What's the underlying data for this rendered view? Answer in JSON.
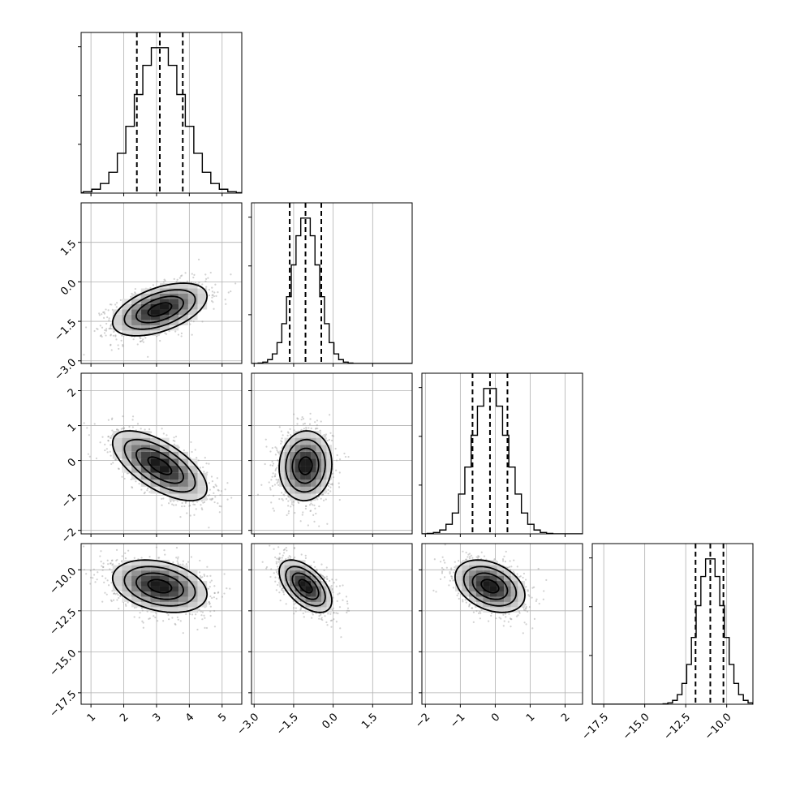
{
  "chart_data": {
    "type": "corner",
    "n_params": 4,
    "grid": true,
    "params": [
      {
        "range": [
          0.7,
          5.6
        ],
        "ticks": [
          1,
          2,
          3,
          4,
          5
        ],
        "tick_labels": [
          "1",
          "2",
          "3",
          "4",
          "5"
        ],
        "center": 3.1,
        "sigma": 0.72,
        "quantiles": [
          2.4,
          3.1,
          3.8
        ]
      },
      {
        "range": [
          -3.1,
          3.0
        ],
        "ticks": [
          -3.0,
          -1.5,
          0.0,
          1.5
        ],
        "tick_labels": [
          "−3.0",
          "−1.5",
          "0.0",
          "1.5"
        ],
        "center": -1.05,
        "sigma": 0.5,
        "quantiles": [
          -1.65,
          -1.05,
          -0.45
        ]
      },
      {
        "range": [
          -2.1,
          2.5
        ],
        "ticks": [
          -2,
          -1,
          0,
          1,
          2
        ],
        "tick_labels": [
          "−2",
          "−1",
          "0",
          "1",
          "2"
        ],
        "center": -0.15,
        "sigma": 0.5,
        "quantiles": [
          -0.65,
          -0.15,
          0.35
        ]
      },
      {
        "range": [
          -18.2,
          -8.4
        ],
        "ticks": [
          -17.5,
          -15.0,
          -12.5,
          -10.0
        ],
        "tick_labels": [
          "−17.5",
          "−15.0",
          "−12.5",
          "−10.0"
        ],
        "center": -11.0,
        "sigma": 0.8,
        "quantiles": [
          -11.9,
          -11.0,
          -10.2
        ]
      }
    ],
    "correlations": [
      {
        "i": 1,
        "j": 0,
        "rho": 0.5
      },
      {
        "i": 2,
        "j": 0,
        "rho": -0.65
      },
      {
        "i": 2,
        "j": 1,
        "rho": 0.05
      },
      {
        "i": 3,
        "j": 0,
        "rho": -0.3
      },
      {
        "i": 3,
        "j": 1,
        "rho": -0.55
      },
      {
        "i": 3,
        "j": 2,
        "rho": -0.35
      }
    ],
    "contour_levels_sigma": [
      0.5,
      1.0,
      1.5,
      2.0
    ],
    "diag_hist_bins": 20
  }
}
